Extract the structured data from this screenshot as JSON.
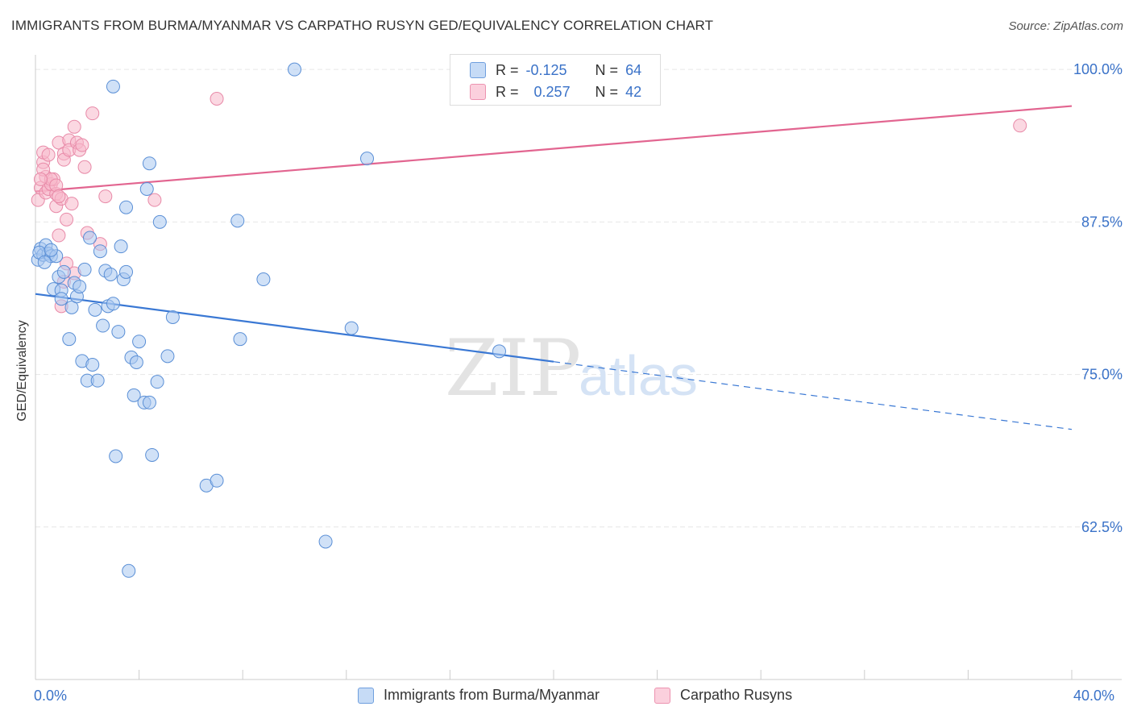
{
  "title": "IMMIGRANTS FROM BURMA/MYANMAR VS CARPATHO RUSYN GED/EQUIVALENCY CORRELATION CHART",
  "source": "Source: ZipAtlas.com",
  "colors": {
    "blue_fill": "#a9c8f0",
    "blue_stroke": "#5a8fd6",
    "blue_line": "#3a78d4",
    "pink_fill": "#f7b8cb",
    "pink_stroke": "#e88aa8",
    "pink_line": "#e26590",
    "grid": "#e6e6e6",
    "axis_text": "#3a72c8"
  },
  "legend_top": {
    "rows": [
      {
        "r_label": "R =",
        "r_value": "-0.125",
        "n_label": "N =",
        "n_value": "64"
      },
      {
        "r_label": "R =",
        "r_value": "0.257",
        "n_label": "N =",
        "n_value": "42"
      }
    ]
  },
  "legend_bottom": {
    "items": [
      {
        "label": "Immigrants from Burma/Myanmar"
      },
      {
        "label": "Carpatho Rusyns"
      }
    ]
  },
  "x_axis_labels": {
    "min": "0.0%",
    "max": "40.0%"
  },
  "watermark": {
    "zip": "ZIP",
    "atlas": "atlas"
  },
  "chart_data": {
    "type": "scatter",
    "title": "IMMIGRANTS FROM BURMA/MYANMAR VS CARPATHO RUSYN GED/EQUIVALENCY CORRELATION CHART",
    "xlabel": "",
    "ylabel": "GED/Equivalency",
    "xlim": [
      0,
      40
    ],
    "ylim": [
      50,
      101.2
    ],
    "y_ticks": [
      62.5,
      75.0,
      87.5,
      100.0
    ],
    "y_tick_labels": [
      "62.5%",
      "75.0%",
      "87.5%",
      "100.0%"
    ],
    "x_ticks": [
      0,
      4,
      8,
      12,
      16,
      20,
      24,
      28,
      32,
      36,
      40
    ],
    "grid": true,
    "series": [
      {
        "name": "Immigrants from Burma/Myanmar",
        "r": -0.125,
        "n": 64,
        "trend": {
          "x_start": 0,
          "y_start": 81.6,
          "x_solid_end": 20,
          "x_end": 40,
          "y_end": 70.5
        },
        "points": [
          [
            0.1,
            84.4
          ],
          [
            0.2,
            85.3
          ],
          [
            0.3,
            84.8
          ],
          [
            0.4,
            85.6
          ],
          [
            0.5,
            84.9
          ],
          [
            0.6,
            84.7
          ],
          [
            0.7,
            82.0
          ],
          [
            0.8,
            84.7
          ],
          [
            0.9,
            83.0
          ],
          [
            1.0,
            81.9
          ],
          [
            1.0,
            81.2
          ],
          [
            1.1,
            83.4
          ],
          [
            1.3,
            77.9
          ],
          [
            1.4,
            80.5
          ],
          [
            1.5,
            82.5
          ],
          [
            1.6,
            81.4
          ],
          [
            1.7,
            82.2
          ],
          [
            1.8,
            76.1
          ],
          [
            1.9,
            83.6
          ],
          [
            2.0,
            74.5
          ],
          [
            2.1,
            86.2
          ],
          [
            2.2,
            75.8
          ],
          [
            2.3,
            80.3
          ],
          [
            2.4,
            74.5
          ],
          [
            2.5,
            85.1
          ],
          [
            2.6,
            79.0
          ],
          [
            2.7,
            83.5
          ],
          [
            2.8,
            80.6
          ],
          [
            2.9,
            83.2
          ],
          [
            3.0,
            80.8
          ],
          [
            3.0,
            98.6
          ],
          [
            3.1,
            68.3
          ],
          [
            3.2,
            78.5
          ],
          [
            3.3,
            85.5
          ],
          [
            3.4,
            82.8
          ],
          [
            3.5,
            83.4
          ],
          [
            3.5,
            88.7
          ],
          [
            3.6,
            58.9
          ],
          [
            3.7,
            76.4
          ],
          [
            3.8,
            73.3
          ],
          [
            3.9,
            76.0
          ],
          [
            4.0,
            77.7
          ],
          [
            4.2,
            72.7
          ],
          [
            4.3,
            90.2
          ],
          [
            4.4,
            92.3
          ],
          [
            4.4,
            72.7
          ],
          [
            4.5,
            68.4
          ],
          [
            4.7,
            74.4
          ],
          [
            4.8,
            87.5
          ],
          [
            5.1,
            76.5
          ],
          [
            5.3,
            79.7
          ],
          [
            6.6,
            65.9
          ],
          [
            7.0,
            66.3
          ],
          [
            7.8,
            87.6
          ],
          [
            7.9,
            77.9
          ],
          [
            8.8,
            82.8
          ],
          [
            10.0,
            100.0
          ],
          [
            11.2,
            61.3
          ],
          [
            12.2,
            78.8
          ],
          [
            12.8,
            92.7
          ],
          [
            17.9,
            76.9
          ],
          [
            0.15,
            85.0
          ],
          [
            0.35,
            84.2
          ],
          [
            0.6,
            85.2
          ]
        ]
      },
      {
        "name": "Carpatho Rusyns",
        "r": 0.257,
        "n": 42,
        "trend": {
          "x_start": 0,
          "y_start": 90.0,
          "x_end": 40,
          "y_end": 97.0
        },
        "points": [
          [
            0.1,
            89.3
          ],
          [
            0.2,
            90.3
          ],
          [
            0.3,
            92.4
          ],
          [
            0.3,
            93.2
          ],
          [
            0.4,
            91.2
          ],
          [
            0.4,
            89.9
          ],
          [
            0.5,
            93.0
          ],
          [
            0.5,
            90.2
          ],
          [
            0.6,
            90.6
          ],
          [
            0.7,
            91.0
          ],
          [
            0.8,
            89.8
          ],
          [
            0.8,
            88.8
          ],
          [
            0.9,
            94.0
          ],
          [
            0.9,
            86.4
          ],
          [
            1.0,
            89.4
          ],
          [
            1.1,
            93.1
          ],
          [
            1.1,
            92.6
          ],
          [
            1.2,
            87.7
          ],
          [
            1.3,
            94.2
          ],
          [
            1.3,
            93.4
          ],
          [
            1.4,
            89.0
          ],
          [
            1.5,
            95.3
          ],
          [
            1.6,
            94.0
          ],
          [
            1.7,
            93.4
          ],
          [
            1.8,
            93.8
          ],
          [
            1.9,
            92.0
          ],
          [
            2.0,
            86.6
          ],
          [
            2.2,
            96.4
          ],
          [
            2.5,
            85.7
          ],
          [
            2.7,
            89.6
          ],
          [
            4.6,
            89.3
          ],
          [
            7.0,
            97.6
          ],
          [
            38.0,
            95.4
          ],
          [
            1.0,
            80.6
          ],
          [
            1.1,
            82.6
          ],
          [
            1.2,
            84.1
          ],
          [
            1.5,
            83.3
          ],
          [
            0.6,
            91.0
          ],
          [
            0.8,
            90.5
          ],
          [
            0.3,
            91.8
          ],
          [
            0.2,
            91.0
          ],
          [
            0.9,
            89.6
          ]
        ]
      }
    ]
  }
}
